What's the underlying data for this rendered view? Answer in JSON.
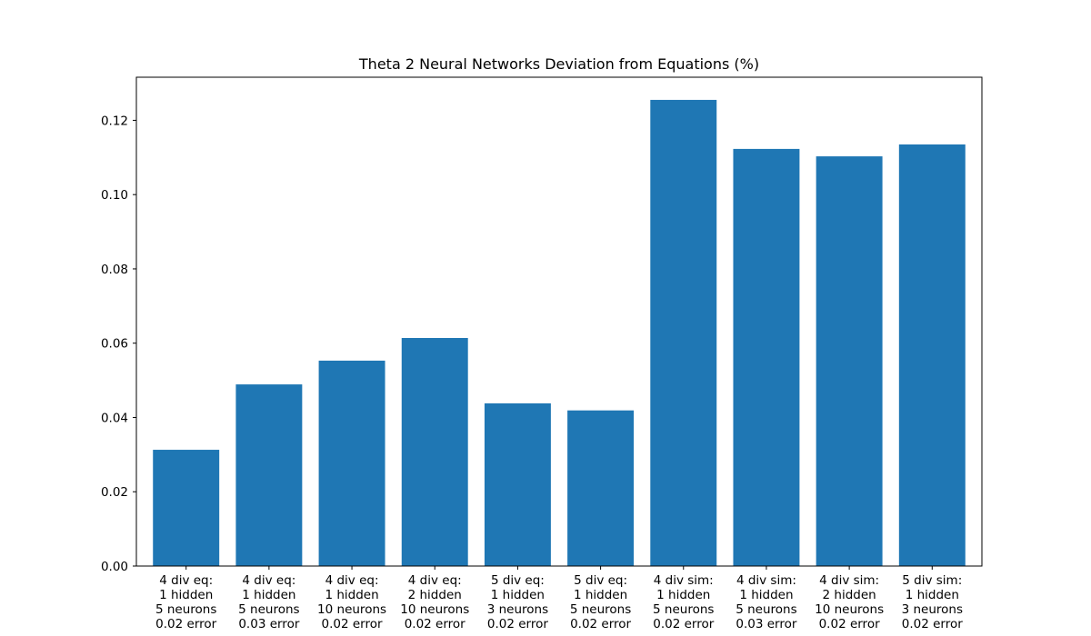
{
  "chart_data": {
    "type": "bar",
    "title": "Theta 2 Neural Networks Deviation from Equations (%)",
    "xlabel": "",
    "ylabel": "",
    "ylim": [
      0,
      0.1316
    ],
    "yticks": [
      "0.00",
      "0.02",
      "0.04",
      "0.06",
      "0.08",
      "0.10",
      "0.12"
    ],
    "grid": false,
    "bar_color": "#1f77b4",
    "categories": [
      [
        "4 div eq:",
        "1 hidden",
        "5 neurons",
        "0.02 error"
      ],
      [
        "4 div eq:",
        "1 hidden",
        "5 neurons",
        "0.03 error"
      ],
      [
        "4 div eq:",
        "1 hidden",
        "10 neurons",
        "0.02 error"
      ],
      [
        "4 div eq:",
        "2 hidden",
        "10 neurons",
        "0.02 error"
      ],
      [
        "5 div eq:",
        "1 hidden",
        "3 neurons",
        "0.02 error"
      ],
      [
        "5 div eq:",
        "1 hidden",
        "5 neurons",
        "0.02 error"
      ],
      [
        "4 div sim:",
        "1 hidden",
        "5 neurons",
        "0.02 error"
      ],
      [
        "4 div sim:",
        "1 hidden",
        "5 neurons",
        "0.03 error"
      ],
      [
        "4 div sim:",
        "2 hidden",
        "10 neurons",
        "0.02 error"
      ],
      [
        "5 div sim:",
        "1 hidden",
        "3 neurons",
        "0.02 error"
      ]
    ],
    "values": [
      0.0313,
      0.0489,
      0.0553,
      0.0614,
      0.0438,
      0.0419,
      0.1255,
      0.1123,
      0.1103,
      0.1135
    ]
  }
}
